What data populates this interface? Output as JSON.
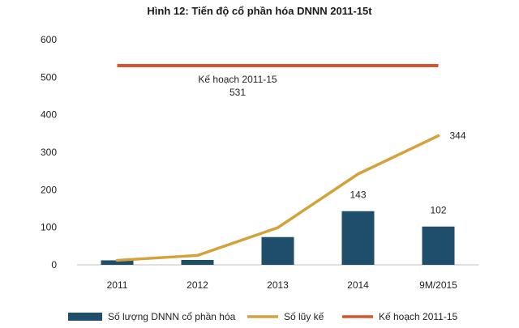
{
  "chart_data": {
    "type": "bar",
    "title": "Hình 12: Tiến độ cổ phần hóa DNNN 2011-15t",
    "categories": [
      "2011",
      "2012",
      "2013",
      "2014",
      "9M/2015"
    ],
    "ylim": [
      0,
      600
    ],
    "yticks": [
      0,
      100,
      200,
      300,
      400,
      500,
      600
    ],
    "grid": false,
    "legend_position": "bottom",
    "series": [
      {
        "name": "Số lượng DNNN cổ phần hóa",
        "type": "bar",
        "color": "#1f4e6b",
        "values": [
          12,
          13,
          74,
          143,
          102
        ],
        "labels": [
          "",
          "",
          "",
          "143",
          "102"
        ]
      },
      {
        "name": "Số lũy kế",
        "type": "line",
        "color": "#d4a23a",
        "values": [
          12,
          25,
          99,
          242,
          344
        ],
        "labels": [
          "",
          "",
          "",
          "",
          "344"
        ]
      },
      {
        "name": "Kế hoạch 2011-15",
        "type": "line",
        "color": "#d9542b",
        "values": [
          531,
          531,
          531,
          531,
          531
        ]
      }
    ],
    "annotations": [
      {
        "line1": "Kế hoạch 2011-15",
        "line2": "531"
      }
    ]
  }
}
